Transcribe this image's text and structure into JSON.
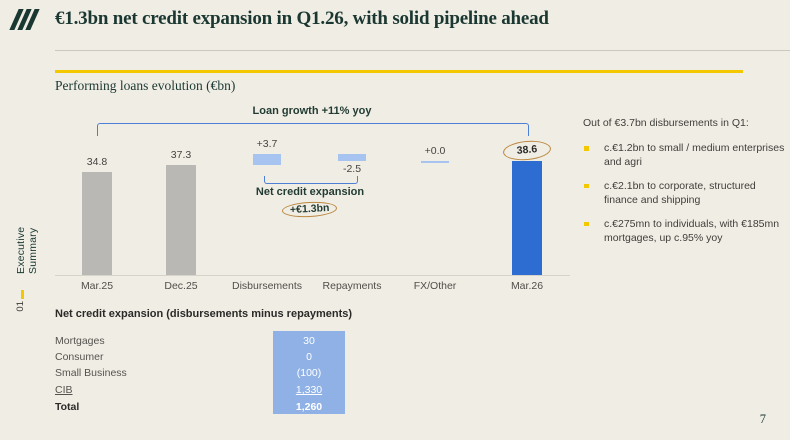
{
  "colors": {
    "background": "#f0ede5",
    "teal": "#1a3831",
    "accent_yellow": "#f3c800",
    "bar_gray": "#b9b8b4",
    "bar_light_blue": "#a7c3ef",
    "bar_blue": "#2d6cd1",
    "table_blue": "#8fb1e6",
    "bracket_blue": "#4d7fd6",
    "circle_tan": "#bb8840"
  },
  "header": {
    "title": "€1.3bn net credit expansion in Q1.26, with solid pipeline ahead"
  },
  "sidebar": {
    "section_label": "Executive Summary",
    "section_number": "01"
  },
  "section": {
    "title": "Performing loans evolution (€bn)"
  },
  "chart_data": {
    "type": "bar",
    "subtype": "waterfall",
    "title": "Performing loans evolution (€bn)",
    "unit": "€bn",
    "ylim": [
      0,
      45
    ],
    "grid": false,
    "columns": [
      {
        "label": "Mar.25",
        "kind": "absolute",
        "value": 34.8,
        "value_label": "34.8",
        "start": 0,
        "end": 34.8,
        "color": "gray",
        "label_pos": "above",
        "circled": false
      },
      {
        "label": "Dec.25",
        "kind": "absolute",
        "value": 37.3,
        "value_label": "37.3",
        "start": 0,
        "end": 37.3,
        "color": "gray",
        "label_pos": "above",
        "circled": false
      },
      {
        "label": "Disbursements",
        "kind": "delta",
        "value": 3.7,
        "value_label": "+3.7",
        "start": 37.3,
        "end": 41.0,
        "color": "light-blue",
        "label_pos": "above",
        "circled": false
      },
      {
        "label": "Repayments",
        "kind": "delta",
        "value": -2.5,
        "value_label": "-2.5",
        "start": 41.0,
        "end": 38.5,
        "color": "light-blue",
        "label_pos": "below",
        "circled": false
      },
      {
        "label": "FX/Other",
        "kind": "delta",
        "value": 0.0,
        "value_label": "+0.0",
        "start": 38.5,
        "end": 38.5,
        "color": "light-blue",
        "label_pos": "above",
        "circled": false
      },
      {
        "label": "Mar.26",
        "kind": "absolute",
        "value": 38.6,
        "value_label": "38.6",
        "start": 0,
        "end": 38.6,
        "color": "blue",
        "label_pos": "above",
        "circled": true
      }
    ],
    "annotations": {
      "top_bracket": {
        "label": "Loan growth +11% yoy",
        "from": "Mar.25",
        "to": "Mar.26"
      },
      "bottom_bracket": {
        "label": "Net credit expansion",
        "value_label": "+€1.3bn",
        "from": "Disbursements",
        "to": "Repayments"
      }
    }
  },
  "right_panel": {
    "title": "Out of €3.7bn disbursements in Q1:",
    "bullets": [
      "c.€1.2bn to small / medium enterprises and agri",
      "c.€2.1bn to corporate, structured finance and shipping",
      "c.€275mn to individuals, with €185mn mortgages, up c.95% yoy"
    ]
  },
  "table": {
    "title": "Net credit expansion (disbursements minus repayments)",
    "rows": [
      {
        "label": "Mortgages",
        "value": "30"
      },
      {
        "label": "Consumer",
        "value": "0"
      },
      {
        "label": "Small Business",
        "value": "(100)"
      },
      {
        "label": "CIB",
        "value": "1,330"
      },
      {
        "label": "Total",
        "value": "1,260"
      }
    ]
  },
  "page_number": "7"
}
